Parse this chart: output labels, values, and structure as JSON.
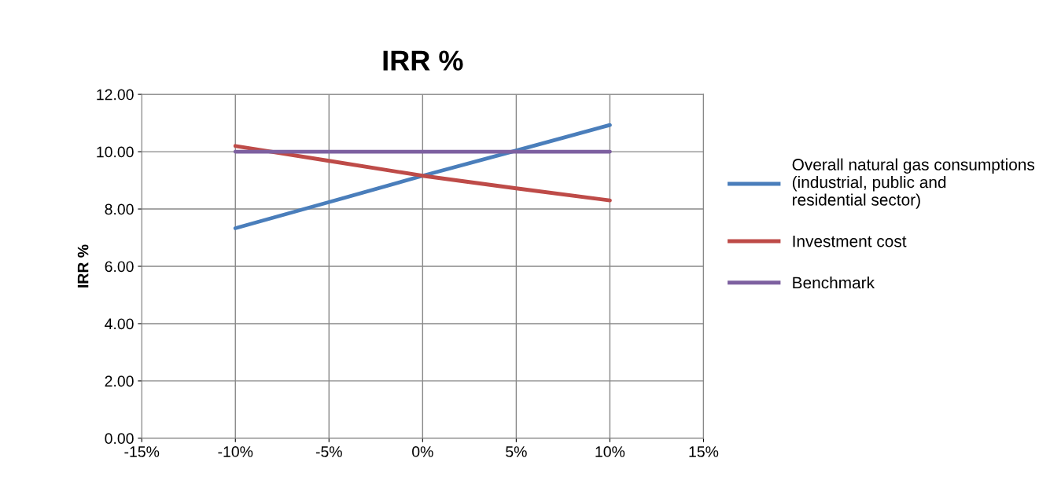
{
  "chart_data": {
    "type": "line",
    "title": "IRR %",
    "ylabel": "IRR %",
    "x": [
      -10,
      -5,
      0,
      5,
      10
    ],
    "series": [
      {
        "name": "Overall natural gas consumptions (industrial, public and residential sector)",
        "color": "#4a7ebb",
        "values": [
          7.33,
          8.24,
          9.16,
          10.04,
          10.93
        ]
      },
      {
        "name": "Investment cost",
        "color": "#be4b48",
        "values": [
          10.2,
          9.68,
          9.16,
          8.72,
          8.3
        ]
      },
      {
        "name": "Benchmark",
        "color": "#7d60a0",
        "values": [
          10,
          10,
          10,
          10,
          10
        ]
      }
    ],
    "xlim": [
      -15,
      15
    ],
    "xticks": [
      {
        "value": -15,
        "label": "-15%"
      },
      {
        "value": -10,
        "label": "-10%"
      },
      {
        "value": -5,
        "label": "-5%"
      },
      {
        "value": 0,
        "label": "0%"
      },
      {
        "value": 5,
        "label": "5%"
      },
      {
        "value": 10,
        "label": "10%"
      },
      {
        "value": 15,
        "label": "15%"
      }
    ],
    "ylim": [
      0,
      12
    ],
    "yticks": [
      {
        "value": 0,
        "label": "0.00"
      },
      {
        "value": 2,
        "label": "2.00"
      },
      {
        "value": 4,
        "label": "4.00"
      },
      {
        "value": 6,
        "label": "6.00"
      },
      {
        "value": 8,
        "label": "8.00"
      },
      {
        "value": 10,
        "label": "10.00"
      },
      {
        "value": 12,
        "label": "12.00"
      }
    ],
    "grid": true,
    "legend": "right",
    "marker": "none",
    "line_style": "solid"
  }
}
